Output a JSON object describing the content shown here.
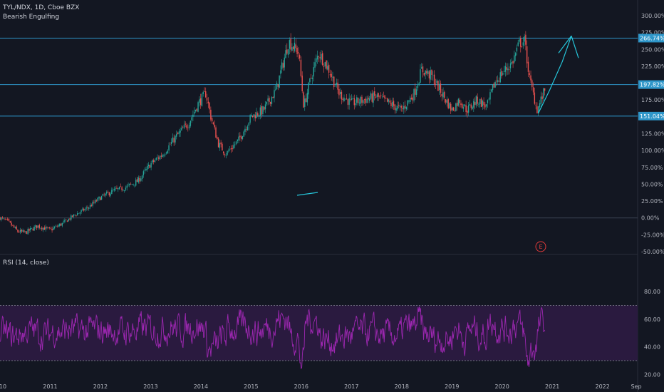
{
  "legend": {
    "symbol": "TYL/NDX, 1D, Cboe BZX",
    "indicator": "Bearish Engulfing",
    "rsi_title": "RSI (14, close)"
  },
  "colors": {
    "background": "#131722",
    "up": "#26a69a",
    "down": "#ef5350",
    "hline": "#2e96c9",
    "zero_line": "#3a4050",
    "rsi_line": "#9c27b0",
    "rsi_band": "#2a1a3f",
    "arrow": "#26c6da",
    "tag_bg": "#2e96c9",
    "event_marker": "#e03a3a"
  },
  "event_marker": "E",
  "chart_data": [
    {
      "type": "candlestick",
      "title": "TYL/NDX, 1D, Cboe BZX",
      "y_unit": "%",
      "ylim": [
        -50,
        300
      ],
      "y_ticks": [
        "300.00%",
        "275.00%",
        "250.00%",
        "225.00%",
        "200.00%",
        "175.00%",
        "150.00%",
        "125.00%",
        "100.00%",
        "75.00%",
        "50.00%",
        "25.00%",
        "0.00%",
        "-25.00%",
        "-50.00%"
      ],
      "x_ticks": [
        "10",
        "2011",
        "2012",
        "2013",
        "2014",
        "2015",
        "2016",
        "2017",
        "2018",
        "2019",
        "2020",
        "2021",
        "2022",
        "Sep"
      ],
      "x_range": [
        2010.0,
        2022.7
      ],
      "horizontal_lines": [
        {
          "value": 266.74,
          "label": "266.74%"
        },
        {
          "value": 197.82,
          "label": "197.82%"
        },
        {
          "value": 151.04,
          "label": "151.04%"
        },
        {
          "value": 0.0,
          "label": ""
        }
      ],
      "anchors": [
        [
          2010.0,
          0
        ],
        [
          2010.15,
          -5
        ],
        [
          2010.35,
          -20
        ],
        [
          2010.5,
          -22
        ],
        [
          2010.75,
          -12
        ],
        [
          2011.0,
          -18
        ],
        [
          2011.25,
          -8
        ],
        [
          2011.5,
          5
        ],
        [
          2011.75,
          15
        ],
        [
          2012.0,
          30
        ],
        [
          2012.25,
          40
        ],
        [
          2012.5,
          45
        ],
        [
          2012.75,
          55
        ],
        [
          2013.0,
          80
        ],
        [
          2013.25,
          95
        ],
        [
          2013.5,
          120
        ],
        [
          2013.75,
          140
        ],
        [
          2013.95,
          170
        ],
        [
          2014.1,
          185
        ],
        [
          2014.2,
          150
        ],
        [
          2014.35,
          110
        ],
        [
          2014.5,
          95
        ],
        [
          2014.75,
          115
        ],
        [
          2015.0,
          150
        ],
        [
          2015.25,
          160
        ],
        [
          2015.5,
          190
        ],
        [
          2015.75,
          262
        ],
        [
          2015.95,
          245
        ],
        [
          2016.05,
          165
        ],
        [
          2016.2,
          210
        ],
        [
          2016.35,
          245
        ],
        [
          2016.55,
          220
        ],
        [
          2016.75,
          185
        ],
        [
          2017.0,
          170
        ],
        [
          2017.25,
          175
        ],
        [
          2017.5,
          180
        ],
        [
          2017.75,
          170
        ],
        [
          2018.0,
          160
        ],
        [
          2018.25,
          185
        ],
        [
          2018.4,
          220
        ],
        [
          2018.6,
          210
        ],
        [
          2018.8,
          185
        ],
        [
          2019.0,
          160
        ],
        [
          2019.15,
          175
        ],
        [
          2019.3,
          160
        ],
        [
          2019.5,
          175
        ],
        [
          2019.7,
          165
        ],
        [
          2019.85,
          200
        ],
        [
          2020.0,
          215
        ],
        [
          2020.2,
          230
        ],
        [
          2020.35,
          260
        ],
        [
          2020.45,
          262
        ],
        [
          2020.55,
          205
        ],
        [
          2020.7,
          160
        ],
        [
          2020.85,
          190
        ]
      ],
      "projection_arrow": [
        [
          2020.72,
          155
        ],
        [
          2020.95,
          190
        ],
        [
          2021.2,
          232
        ],
        [
          2021.38,
          270
        ]
      ],
      "rsi": {
        "ylim": [
          15,
          95
        ],
        "y_ticks": [
          "80.00",
          "60.00",
          "40.00",
          "20.00"
        ],
        "upper": 70,
        "lower": 30
      }
    }
  ]
}
